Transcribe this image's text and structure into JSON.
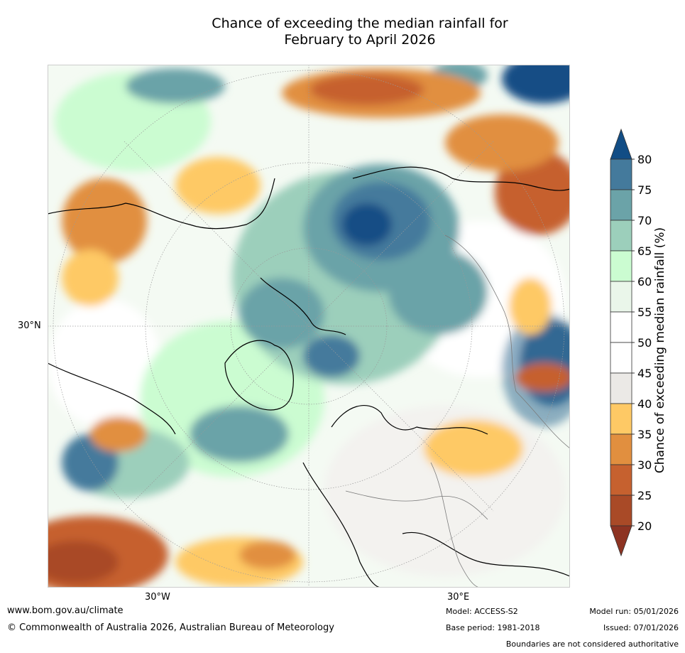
{
  "title": {
    "line1": "Chance of exceeding the median rainfall for",
    "line2": "February to April 2026"
  },
  "map": {
    "lat_label": "30°N",
    "lon_labels": [
      "30°W",
      "30°E"
    ]
  },
  "colorbar": {
    "title": "Chance of exceeding median rainfall (%)",
    "ticks": [
      "80",
      "75",
      "70",
      "65",
      "60",
      "55",
      "50",
      "45",
      "40",
      "35",
      "30",
      "25",
      "20"
    ],
    "colors": {
      "gt80": "#124d85",
      "75_80": "#447a9c",
      "70_75": "#6ba3a8",
      "65_70": "#9ccfbb",
      "60_65": "#cbfcd1",
      "55_60": "#eaf6ea",
      "50_55": "#ffffff",
      "45_50": "#ffffff",
      "40_45": "#ebe9e6",
      "35_40": "#fec965",
      "30_35": "#e18f3f",
      "25_30": "#c6612f",
      "20_25": "#a94a27",
      "lt20": "#8d3322"
    }
  },
  "footer": {
    "website": "www.bom.gov.au/climate",
    "copyright": "© Commonwealth of Australia 2026, Australian Bureau of Meteorology",
    "model": "Model: ACCESS-S2",
    "base_period": "Base period: 1981-2018",
    "model_run": "Model run: 05/01/2026",
    "issued": "Issued: 07/01/2026",
    "disclaimer": "Boundaries are not considered authoritative"
  }
}
